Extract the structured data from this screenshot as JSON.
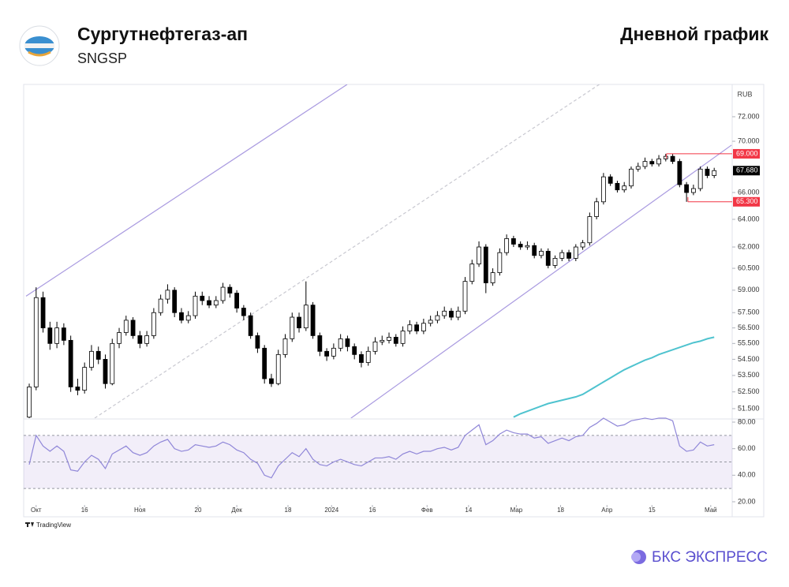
{
  "header": {
    "company": "Сургутнефтегаз-ап",
    "ticker": "SNGSP",
    "caption": "Дневной график"
  },
  "footer": {
    "source": "TradingView",
    "brand": "БКС ЭКСПРЕСС"
  },
  "chart_data": {
    "type": "candlestick",
    "unit": "RUB",
    "log_scale": true,
    "grid": false,
    "up_color": "#ffffff",
    "down_color": "#000000",
    "wick_color": "#000000",
    "xlim": [
      -0.46,
      101.6
    ],
    "xticks": [
      {
        "value": 1,
        "label": "Окт"
      },
      {
        "value": 8,
        "label": "16"
      },
      {
        "value": 16,
        "label": "Ноя"
      },
      {
        "value": 24.4,
        "label": "20"
      },
      {
        "value": 30,
        "label": "Дек"
      },
      {
        "value": 37.4,
        "label": "18"
      },
      {
        "value": 43.7,
        "label": "2024"
      },
      {
        "value": 49.6,
        "label": "16"
      },
      {
        "value": 57.5,
        "label": "Фев"
      },
      {
        "value": 63.5,
        "label": "14"
      },
      {
        "value": 70.4,
        "label": "Мар"
      },
      {
        "value": 76.8,
        "label": "18"
      },
      {
        "value": 83.5,
        "label": "Апр"
      },
      {
        "value": 90,
        "label": "15"
      },
      {
        "value": 98.5,
        "label": "Май"
      }
    ],
    "ylim": [
      50.94,
      74.72
    ],
    "yticks": [
      {
        "value": 51.5,
        "label": "51.500"
      },
      {
        "value": 52.5,
        "label": "52.500"
      },
      {
        "value": 53.5,
        "label": "53.500"
      },
      {
        "value": 54.5,
        "label": "54.500"
      },
      {
        "value": 55.5,
        "label": "55.500"
      },
      {
        "value": 56.5,
        "label": "56.500"
      },
      {
        "value": 57.5,
        "label": "57.500"
      },
      {
        "value": 59,
        "label": "59.000"
      },
      {
        "value": 60.5,
        "label": "60.500"
      },
      {
        "value": 62,
        "label": "62.000"
      },
      {
        "value": 64,
        "label": "64.000"
      },
      {
        "value": 66,
        "label": "66.000"
      },
      {
        "value": 70,
        "label": "70.000"
      },
      {
        "value": 72,
        "label": "72.000"
      }
    ],
    "ohlc": [
      [
        51.0,
        53.0,
        50.9,
        52.8
      ],
      [
        52.8,
        59.2,
        52.6,
        58.5
      ],
      [
        58.5,
        58.9,
        56.2,
        56.5
      ],
      [
        56.5,
        56.9,
        55.1,
        55.5
      ],
      [
        55.5,
        56.9,
        55.2,
        56.5
      ],
      [
        56.5,
        56.8,
        55.4,
        55.7
      ],
      [
        55.7,
        56.0,
        52.5,
        52.8
      ],
      [
        52.8,
        53.3,
        52.3,
        52.6
      ],
      [
        52.6,
        54.3,
        52.4,
        54.0
      ],
      [
        54.0,
        55.4,
        53.8,
        55.0
      ],
      [
        55.0,
        55.3,
        54.2,
        54.5
      ],
      [
        54.5,
        54.8,
        52.7,
        53.0
      ],
      [
        53.0,
        55.8,
        52.9,
        55.5
      ],
      [
        55.5,
        56.5,
        55.2,
        56.2
      ],
      [
        56.2,
        57.3,
        56.0,
        57.0
      ],
      [
        57.0,
        57.2,
        55.8,
        56.0
      ],
      [
        56.0,
        56.3,
        55.2,
        55.5
      ],
      [
        55.5,
        56.3,
        55.3,
        56.0
      ],
      [
        56.0,
        57.8,
        55.8,
        57.5
      ],
      [
        57.5,
        58.7,
        57.3,
        58.4
      ],
      [
        58.4,
        59.4,
        58.1,
        59.0
      ],
      [
        59.0,
        59.2,
        57.2,
        57.5
      ],
      [
        57.5,
        57.8,
        56.8,
        57.0
      ],
      [
        57.0,
        57.6,
        56.8,
        57.3
      ],
      [
        57.3,
        58.9,
        57.1,
        58.6
      ],
      [
        58.6,
        58.9,
        58.0,
        58.3
      ],
      [
        58.3,
        58.6,
        57.8,
        58.0
      ],
      [
        58.0,
        58.6,
        57.8,
        58.3
      ],
      [
        58.3,
        59.5,
        58.1,
        59.2
      ],
      [
        59.2,
        59.4,
        58.5,
        58.8
      ],
      [
        58.8,
        59.0,
        57.5,
        57.8
      ],
      [
        57.8,
        58.0,
        57.0,
        57.3
      ],
      [
        57.3,
        57.5,
        55.8,
        56.0
      ],
      [
        56.0,
        56.2,
        54.9,
        55.2
      ],
      [
        55.2,
        55.4,
        53.0,
        53.3
      ],
      [
        53.3,
        53.6,
        52.8,
        53.0
      ],
      [
        53.0,
        55.1,
        52.9,
        54.8
      ],
      [
        54.8,
        56.1,
        54.6,
        55.8
      ],
      [
        55.8,
        57.5,
        55.6,
        57.2
      ],
      [
        57.2,
        57.5,
        56.2,
        56.5
      ],
      [
        56.5,
        59.6,
        56.3,
        58.0
      ],
      [
        58.0,
        58.2,
        55.8,
        56.0
      ],
      [
        56.0,
        56.2,
        54.7,
        55.0
      ],
      [
        55.0,
        55.2,
        54.4,
        54.7
      ],
      [
        54.7,
        55.5,
        54.5,
        55.2
      ],
      [
        55.2,
        56.1,
        55.0,
        55.8
      ],
      [
        55.8,
        56.0,
        55.0,
        55.3
      ],
      [
        55.3,
        55.5,
        54.5,
        54.8
      ],
      [
        54.8,
        55.0,
        54.0,
        54.3
      ],
      [
        54.3,
        55.3,
        54.1,
        55.0
      ],
      [
        55.0,
        55.9,
        54.8,
        55.6
      ],
      [
        55.6,
        56.0,
        55.4,
        55.7
      ],
      [
        55.7,
        56.2,
        55.5,
        55.9
      ],
      [
        55.9,
        56.1,
        55.3,
        55.5
      ],
      [
        55.5,
        56.6,
        55.3,
        56.3
      ],
      [
        56.3,
        57.0,
        56.1,
        56.7
      ],
      [
        56.7,
        56.9,
        56.1,
        56.3
      ],
      [
        56.3,
        57.1,
        56.1,
        56.8
      ],
      [
        56.8,
        57.3,
        56.6,
        57.0
      ],
      [
        57.0,
        57.6,
        56.8,
        57.3
      ],
      [
        57.3,
        57.9,
        57.1,
        57.6
      ],
      [
        57.6,
        57.8,
        57.0,
        57.2
      ],
      [
        57.2,
        57.9,
        57.0,
        57.6
      ],
      [
        57.6,
        59.9,
        57.4,
        59.6
      ],
      [
        59.6,
        61.1,
        59.4,
        60.8
      ],
      [
        60.8,
        62.4,
        60.6,
        62.0
      ],
      [
        62.0,
        62.2,
        58.8,
        59.5
      ],
      [
        59.5,
        60.5,
        59.3,
        60.2
      ],
      [
        60.2,
        61.9,
        60.0,
        61.6
      ],
      [
        61.6,
        62.9,
        61.4,
        62.6
      ],
      [
        62.6,
        62.8,
        62.0,
        62.2
      ],
      [
        62.2,
        62.4,
        61.8,
        62.0
      ],
      [
        62.0,
        62.4,
        61.8,
        62.1
      ],
      [
        62.1,
        62.3,
        61.2,
        61.4
      ],
      [
        61.4,
        61.9,
        61.2,
        61.7
      ],
      [
        61.7,
        61.9,
        60.5,
        60.7
      ],
      [
        60.7,
        61.4,
        60.5,
        61.2
      ],
      [
        61.2,
        61.8,
        61.0,
        61.6
      ],
      [
        61.6,
        61.8,
        61.0,
        61.2
      ],
      [
        61.2,
        62.2,
        61.0,
        62.0
      ],
      [
        62.0,
        62.5,
        61.8,
        62.3
      ],
      [
        62.3,
        64.5,
        62.1,
        64.2
      ],
      [
        64.2,
        65.6,
        64.0,
        65.3
      ],
      [
        65.3,
        67.5,
        65.1,
        67.2
      ],
      [
        67.2,
        67.4,
        66.5,
        66.7
      ],
      [
        66.7,
        66.9,
        66.0,
        66.2
      ],
      [
        66.2,
        66.8,
        66.0,
        66.5
      ],
      [
        66.5,
        68.0,
        66.3,
        67.8
      ],
      [
        67.8,
        68.3,
        67.6,
        68.0
      ],
      [
        68.0,
        68.7,
        67.8,
        68.4
      ],
      [
        68.4,
        68.6,
        68.0,
        68.2
      ],
      [
        68.2,
        68.9,
        68.0,
        68.6
      ],
      [
        68.6,
        69.0,
        68.4,
        68.8
      ],
      [
        68.8,
        69.0,
        68.2,
        68.4
      ],
      [
        68.4,
        68.6,
        66.4,
        66.6
      ],
      [
        66.6,
        66.8,
        65.3,
        66.0
      ],
      [
        66.0,
        66.6,
        65.8,
        66.3
      ],
      [
        66.3,
        68.0,
        66.1,
        67.8
      ],
      [
        67.8,
        68.0,
        67.1,
        67.3
      ],
      [
        67.3,
        67.9,
        67.1,
        67.68
      ]
    ],
    "ma_color": "#4fc3cf",
    "ma": [
      null,
      null,
      null,
      null,
      null,
      null,
      null,
      null,
      null,
      null,
      null,
      null,
      null,
      null,
      null,
      null,
      null,
      null,
      null,
      null,
      null,
      null,
      null,
      null,
      null,
      null,
      null,
      null,
      null,
      null,
      null,
      null,
      null,
      null,
      null,
      null,
      null,
      null,
      null,
      null,
      null,
      null,
      null,
      null,
      null,
      null,
      null,
      null,
      null,
      null,
      null,
      null,
      null,
      null,
      null,
      null,
      null,
      null,
      null,
      null,
      null,
      null,
      null,
      null,
      null,
      null,
      null,
      null,
      null,
      null,
      51.0,
      51.2,
      51.35,
      51.5,
      51.65,
      51.8,
      51.9,
      52.0,
      52.1,
      52.2,
      52.35,
      52.6,
      52.85,
      53.1,
      53.35,
      53.6,
      53.85,
      54.05,
      54.25,
      54.45,
      54.6,
      54.8,
      54.95,
      55.1,
      55.25,
      55.4,
      55.55,
      55.65,
      55.8,
      55.9
    ],
    "trend_color": "#a99ae0",
    "trend_lines": [
      {
        "x": [
          -0.46,
          45.95
        ],
        "y": [
          58.6,
          74.72
        ],
        "dashed": false
      },
      {
        "x": [
          46.5,
          101.5
        ],
        "y": [
          50.94,
          69.69
        ],
        "dashed": false
      },
      {
        "x": [
          9.46,
          82.4
        ],
        "y": [
          50.94,
          74.72
        ],
        "dashed": true
      }
    ],
    "levels": [
      {
        "value": 69,
        "label": "69.000",
        "from": 92.1,
        "color": "#f23645"
      },
      {
        "value": 65.3,
        "label": "65.300",
        "from": 95.2,
        "color": "#f23645"
      }
    ],
    "last_price": {
      "value": 67.68,
      "label": "67.680",
      "color": "#000000"
    },
    "rsi_color": "#8f86d8",
    "rsi_ylim": [
      17.6,
      81.2
    ],
    "rsi_yticks": [
      {
        "value": 80,
        "label": "80.00"
      },
      {
        "value": 60,
        "label": "60.00"
      },
      {
        "value": 40,
        "label": "40.00"
      },
      {
        "value": 20,
        "label": "20.00"
      }
    ],
    "rsi_band": [
      30,
      70
    ],
    "rsi_mid": 50,
    "rsi": [
      48,
      70,
      62,
      58,
      62,
      58,
      44,
      43,
      50,
      55,
      52,
      45,
      56,
      59,
      62,
      57,
      55,
      57,
      62,
      65,
      67,
      60,
      58,
      59,
      63,
      62,
      61,
      62,
      65,
      63,
      59,
      57,
      52,
      49,
      40,
      38,
      47,
      52,
      57,
      54,
      60,
      52,
      48,
      47,
      50,
      52,
      50,
      48,
      47,
      50,
      53,
      53,
      54,
      52,
      56,
      58,
      56,
      58,
      58,
      60,
      61,
      59,
      61,
      70,
      74,
      78,
      63,
      66,
      71,
      74,
      72,
      71,
      71,
      68,
      69,
      64,
      66,
      68,
      66,
      69,
      70,
      76,
      79,
      83,
      80,
      77,
      78,
      81,
      82,
      83,
      82,
      83,
      83,
      81,
      62,
      58,
      59,
      65,
      62,
      63
    ]
  }
}
